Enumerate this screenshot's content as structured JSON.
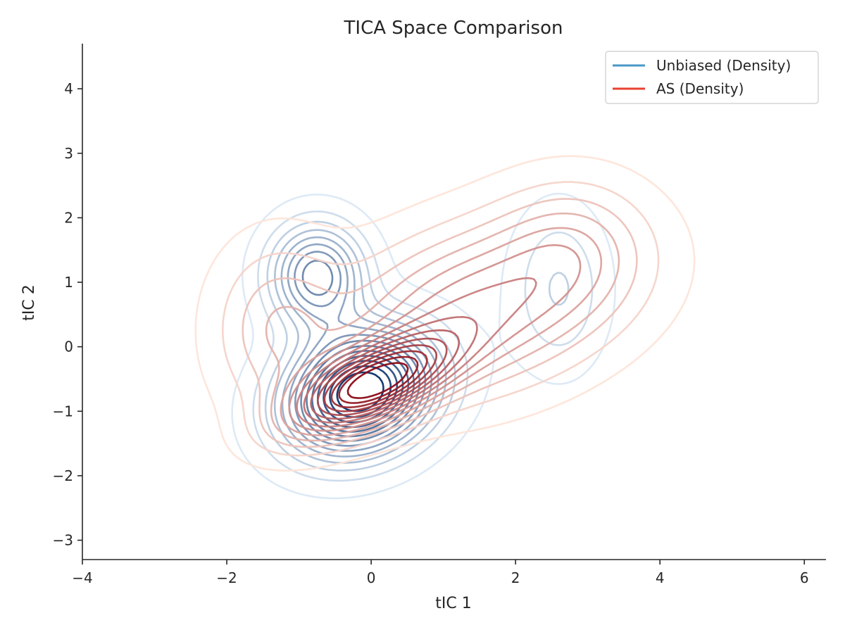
{
  "chart_data": {
    "type": "contour",
    "title": "TICA Space Comparison",
    "xlabel": "tIC 1",
    "ylabel": "tIC 2",
    "xlim": [
      -4,
      6.3
    ],
    "ylim": [
      -3.3,
      4.7
    ],
    "xticks": [
      -4,
      -2,
      0,
      2,
      4,
      6
    ],
    "yticks": [
      -3,
      -2,
      -1,
      0,
      1,
      2,
      3,
      4
    ],
    "xtick_labels": [
      "−4",
      "−2",
      "0",
      "2",
      "4",
      "6"
    ],
    "ytick_labels": [
      "−3",
      "−2",
      "−1",
      "0",
      "1",
      "2",
      "3",
      "4"
    ],
    "grid": false,
    "legend_position": "top-right",
    "legend_colors": [
      "#4a98c9",
      "#e8412f"
    ],
    "series": [
      {
        "name": "Unbiased (Density)",
        "kind": "kde-contour",
        "colormap": "Blues",
        "levels": 14,
        "modes": [
          {
            "cx": -0.15,
            "cy": -0.7,
            "sx": 0.7,
            "sy": 0.65,
            "rho": 0.2,
            "w": 1.0
          },
          {
            "cx": -0.75,
            "cy": 1.1,
            "sx": 0.45,
            "sy": 0.55,
            "rho": 0.0,
            "w": 0.55
          },
          {
            "cx": 2.6,
            "cy": 0.9,
            "sx": 0.45,
            "sy": 0.85,
            "rho": 0.0,
            "w": 0.18
          }
        ]
      },
      {
        "name": "AS (Density)",
        "kind": "kde-contour",
        "colormap": "Reds",
        "levels": 14,
        "modes": [
          {
            "cx": 0.0,
            "cy": -0.6,
            "sx": 0.75,
            "sy": 0.5,
            "rho": 0.6,
            "w": 1.0
          },
          {
            "cx": 1.5,
            "cy": 0.6,
            "sx": 1.3,
            "sy": 0.9,
            "rho": 0.3,
            "w": 0.5
          },
          {
            "cx": -1.3,
            "cy": 0.3,
            "sx": 0.6,
            "sy": 0.9,
            "rho": 0.0,
            "w": 0.25
          },
          {
            "cx": 2.8,
            "cy": 1.6,
            "sx": 0.7,
            "sy": 0.7,
            "rho": 0.0,
            "w": 0.2
          }
        ]
      }
    ]
  }
}
